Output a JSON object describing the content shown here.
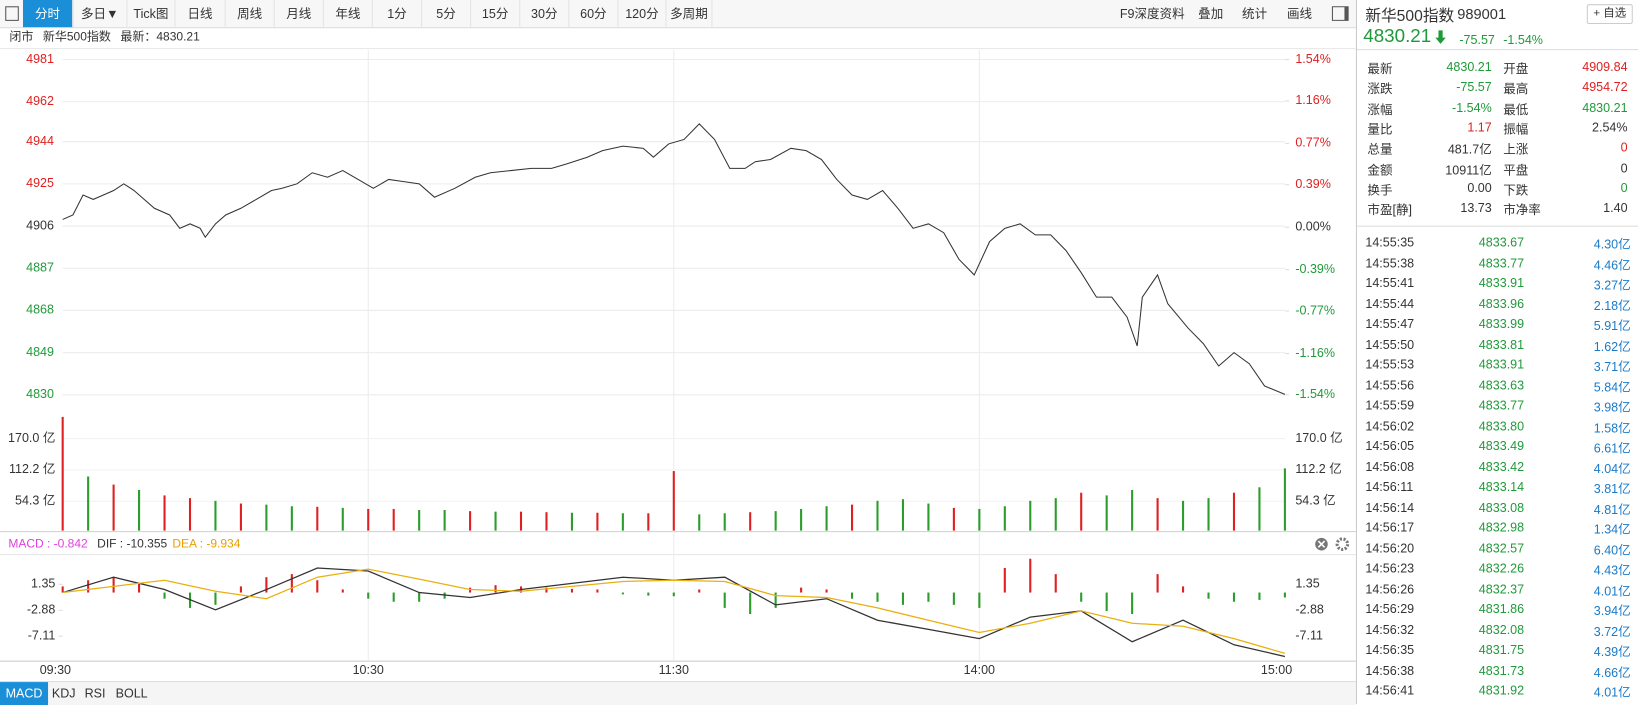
{
  "toolbar": {
    "left": [
      "分时",
      "多日▼",
      "Tick图",
      "日线",
      "周线",
      "月线",
      "年线",
      "1分",
      "5分",
      "15分",
      "30分",
      "60分",
      "120分",
      "多周期"
    ],
    "active": 0,
    "right": [
      "F9深度资料",
      "叠加",
      "统计",
      "画线"
    ]
  },
  "subheader": {
    "status": "闭市",
    "name": "新华500指数",
    "latest": "最新：4830.21"
  },
  "chart_data": [
    {
      "type": "line",
      "x": [
        0,
        2,
        4,
        6,
        8,
        10,
        12,
        14,
        16,
        18,
        21,
        23,
        25,
        27,
        28,
        30,
        32,
        35,
        38,
        41,
        43,
        46,
        49,
        52,
        55,
        58,
        61,
        64,
        67,
        70,
        73,
        77,
        81,
        84,
        88,
        92,
        96,
        99,
        103,
        106,
        110,
        114,
        116,
        119,
        122,
        125,
        128,
        131,
        134,
        136,
        139,
        143,
        146,
        149,
        152,
        155,
        158,
        161,
        164,
        167,
        170,
        173,
        176,
        179,
        182,
        185,
        188,
        191,
        194,
        197,
        200,
        203,
        206,
        209,
        211,
        212,
        215,
        217,
        221,
        224,
        227,
        230,
        233,
        236,
        240
      ],
      "xlim": [
        0,
        240
      ],
      "xticks": [
        {
          "value": 0,
          "label": "09:30"
        },
        {
          "value": 60,
          "label": "10:30"
        },
        {
          "value": 120,
          "label": "11:30"
        },
        {
          "value": 180,
          "label": "14:00"
        },
        {
          "value": 240,
          "label": "15:00"
        }
      ],
      "series": [
        {
          "color": "#333333",
          "values": [
            4909,
            4911,
            4920,
            4918,
            4920,
            4922,
            4925,
            4922,
            4918,
            4914,
            4911,
            4905,
            4907,
            4905,
            4901,
            4907,
            4911,
            4914,
            4918,
            4922,
            4923,
            4925,
            4930,
            4928,
            4931,
            4927,
            4923,
            4927,
            4926,
            4925,
            4919,
            4923,
            4928,
            4930,
            4931,
            4932,
            4932,
            4934,
            4937,
            4940,
            4942,
            4941,
            4937,
            4943,
            4945,
            4952,
            4945,
            4932,
            4932,
            4935,
            4936,
            4941,
            4940,
            4936,
            4927,
            4920,
            4918,
            4922,
            4914,
            4905,
            4907,
            4903,
            4891,
            4884,
            4899,
            4905,
            4907,
            4902,
            4902,
            4895,
            4885,
            4874,
            4874,
            4865,
            4852,
            4874,
            4884,
            4871,
            4860,
            4853,
            4843,
            4849,
            4844,
            4834,
            4830.21
          ]
        }
      ],
      "ylim": [
        4830,
        4981
      ],
      "yticks": [
        4981,
        4962,
        4944,
        4925,
        4906,
        4887,
        4868,
        4849,
        4830
      ],
      "y2lim": [
        -1.54,
        1.54
      ],
      "y2ticks": [
        {
          "value": 1.54,
          "label": "1.54%"
        },
        {
          "value": 1.16,
          "label": "1.16%"
        },
        {
          "value": 0.77,
          "label": "0.77%"
        },
        {
          "value": 0.39,
          "label": "0.39%"
        },
        {
          "value": 0,
          "label": "0.00%"
        },
        {
          "value": -0.39,
          "label": "-0.39%"
        },
        {
          "value": -0.77,
          "label": "-0.77%"
        },
        {
          "value": -1.16,
          "label": "-1.16%"
        },
        {
          "value": -1.54,
          "label": "-1.54%"
        }
      ],
      "grid": true
    },
    {
      "type": "bar",
      "x": [
        0,
        5,
        10,
        15,
        20,
        25,
        30,
        35,
        40,
        45,
        50,
        55,
        60,
        65,
        70,
        75,
        80,
        85,
        90,
        95,
        100,
        105,
        110,
        115,
        120,
        125,
        130,
        135,
        140,
        145,
        150,
        155,
        160,
        165,
        170,
        175,
        180,
        185,
        190,
        195,
        200,
        205,
        210,
        215,
        220,
        225,
        230,
        235,
        240
      ],
      "values": [
        210,
        100,
        85,
        75,
        65,
        60,
        55,
        50,
        48,
        45,
        44,
        42,
        40,
        40,
        38,
        38,
        36,
        35,
        35,
        34,
        33,
        33,
        32,
        32,
        110,
        30,
        32,
        34,
        36,
        40,
        45,
        48,
        55,
        58,
        50,
        42,
        40,
        45,
        55,
        60,
        70,
        65,
        75,
        60,
        55,
        60,
        70,
        80,
        115
      ],
      "colors": [
        "#e02020",
        "#2a9d2a",
        "#e02020",
        "#2a9d2a",
        "#e02020",
        "#e02020",
        "#2a9d2a",
        "#e02020",
        "#2a9d2a",
        "#2a9d2a",
        "#e02020",
        "#2a9d2a",
        "#e02020",
        "#e02020",
        "#2a9d2a",
        "#2a9d2a",
        "#e02020",
        "#2a9d2a",
        "#e02020",
        "#e02020",
        "#2a9d2a",
        "#e02020",
        "#2a9d2a",
        "#e02020",
        "#e02020",
        "#2a9d2a",
        "#2a9d2a",
        "#e02020",
        "#2a9d2a",
        "#2a9d2a",
        "#2a9d2a",
        "#e02020",
        "#2a9d2a",
        "#2a9d2a",
        "#2a9d2a",
        "#e02020",
        "#2a9d2a",
        "#2a9d2a",
        "#2a9d2a",
        "#2a9d2a",
        "#e02020",
        "#2a9d2a",
        "#2a9d2a",
        "#e02020",
        "#2a9d2a",
        "#2a9d2a",
        "#e02020",
        "#2a9d2a",
        "#2a9d2a"
      ],
      "ylim": [
        0,
        218
      ],
      "yticks": [
        {
          "value": 170,
          "label": "170.0 亿"
        },
        {
          "value": 112.2,
          "label": "112.2 亿"
        },
        {
          "value": 54.3,
          "label": "54.3 亿"
        }
      ]
    },
    {
      "type": "macd",
      "labels": [
        {
          "text": "MACD : -0.842",
          "color": "#e040e0"
        },
        {
          "text": "DIF : -10.355",
          "color": "#333333"
        },
        {
          "text": "DEA : -9.934",
          "color": "#e8a000"
        }
      ],
      "histogram": {
        "x": [
          0,
          5,
          10,
          15,
          20,
          25,
          30,
          35,
          40,
          45,
          50,
          55,
          60,
          65,
          70,
          75,
          80,
          85,
          90,
          95,
          100,
          105,
          110,
          115,
          120,
          125,
          130,
          135,
          140,
          145,
          150,
          155,
          160,
          165,
          170,
          175,
          180,
          185,
          190,
          195,
          200,
          205,
          210,
          215,
          220,
          225,
          230,
          235,
          240
        ],
        "values": [
          1.0,
          2.0,
          2.5,
          1.5,
          -1.0,
          -2.5,
          -2.0,
          1.0,
          2.5,
          3.0,
          2.0,
          0.5,
          -1.0,
          -1.5,
          -1.5,
          -1.0,
          0.8,
          1.2,
          1.0,
          0.8,
          0.6,
          0.5,
          -0.3,
          -0.5,
          -0.6,
          0.5,
          -2.5,
          -3.5,
          -2.5,
          0.8,
          0.5,
          -1.0,
          -1.5,
          -2.0,
          -1.5,
          -2.0,
          -2.5,
          4.0,
          5.5,
          3.0,
          -1.5,
          -3.0,
          -3.5,
          3.0,
          1.0,
          -1.0,
          -1.5,
          -1.2,
          -0.8
        ],
        "up_color": "#e02020",
        "down_color": "#2a9d2a"
      },
      "series": [
        {
          "color": "#333333",
          "x": [
            0,
            10,
            20,
            30,
            40,
            50,
            60,
            70,
            80,
            90,
            100,
            110,
            120,
            130,
            140,
            150,
            160,
            170,
            180,
            190,
            200,
            210,
            220,
            230,
            240
          ],
          "values": [
            0,
            2.5,
            0.5,
            -2.8,
            0.5,
            4.0,
            3.5,
            0,
            -0.8,
            0.5,
            1.5,
            2.5,
            2.0,
            2.5,
            -2.0,
            -1.0,
            -4.5,
            -6.0,
            -7.5,
            -4.0,
            -3.0,
            -8.0,
            -4.5,
            -8.5,
            -10.4
          ]
        },
        {
          "color": "#e8b010",
          "x": [
            0,
            10,
            20,
            30,
            40,
            50,
            60,
            70,
            80,
            90,
            100,
            110,
            120,
            130,
            140,
            150,
            160,
            170,
            180,
            190,
            200,
            210,
            220,
            230,
            240
          ],
          "values": [
            0,
            1.0,
            2.0,
            0.2,
            -1.0,
            2.5,
            3.8,
            2.2,
            0.5,
            0.2,
            1.0,
            1.8,
            2.0,
            1.8,
            -0.5,
            -0.8,
            -2.5,
            -4.5,
            -6.5,
            -5.0,
            -3.0,
            -5.0,
            -5.5,
            -7.5,
            -9.9
          ]
        }
      ],
      "ylim": [
        -11,
        6
      ],
      "yticks": [
        1.35,
        -2.88,
        -7.11
      ]
    }
  ],
  "tabs": {
    "items": [
      "MACD",
      "KDJ",
      "RSI",
      "BOLL"
    ],
    "active": 0
  },
  "quote": {
    "name": "新华500指数",
    "code": "989001",
    "add": "+ 自选",
    "price": "4830.21",
    "change": "-75.57",
    "pct": "-1.54%",
    "color": "#1f9a3a",
    "stats": [
      {
        "label": "最新",
        "value": "4830.21",
        "color": "#1f9a3a"
      },
      {
        "label": "开盘",
        "value": "4909.84",
        "color": "#e02020"
      },
      {
        "label": "涨跌",
        "value": "-75.57",
        "color": "#1f9a3a"
      },
      {
        "label": "最高",
        "value": "4954.72",
        "color": "#e02020"
      },
      {
        "label": "涨幅",
        "value": "-1.54%",
        "color": "#1f9a3a"
      },
      {
        "label": "最低",
        "value": "4830.21",
        "color": "#1f9a3a"
      },
      {
        "label": "量比",
        "value": "1.17",
        "color": "#e02020"
      },
      {
        "label": "振幅",
        "value": "2.54%",
        "color": "#333333"
      },
      {
        "label": "总量",
        "value": "481.7亿",
        "color": "#333333"
      },
      {
        "label": "上涨",
        "value": "0",
        "color": "#e02020"
      },
      {
        "label": "金额",
        "value": "10911亿",
        "color": "#333333"
      },
      {
        "label": "平盘",
        "value": "0",
        "color": "#333333"
      },
      {
        "label": "换手",
        "value": "0.00",
        "color": "#333333"
      },
      {
        "label": "下跌",
        "value": "0",
        "color": "#1f9a3a"
      },
      {
        "label": "市盈[静]",
        "value": "13.73",
        "color": "#333333"
      },
      {
        "label": "市净率",
        "value": "1.40",
        "color": "#333333"
      }
    ]
  },
  "ticks": {
    "price_color": "#1f9a3a",
    "volume_color": "#1a7ac8",
    "rows": [
      [
        "14:55:35",
        "4833.67",
        "4.30亿"
      ],
      [
        "14:55:38",
        "4833.77",
        "4.46亿"
      ],
      [
        "14:55:41",
        "4833.91",
        "3.27亿"
      ],
      [
        "14:55:44",
        "4833.96",
        "2.18亿"
      ],
      [
        "14:55:47",
        "4833.99",
        "5.91亿"
      ],
      [
        "14:55:50",
        "4833.81",
        "1.62亿"
      ],
      [
        "14:55:53",
        "4833.91",
        "3.71亿"
      ],
      [
        "14:55:56",
        "4833.63",
        "5.84亿"
      ],
      [
        "14:55:59",
        "4833.77",
        "3.98亿"
      ],
      [
        "14:56:02",
        "4833.80",
        "1.58亿"
      ],
      [
        "14:56:05",
        "4833.49",
        "6.61亿"
      ],
      [
        "14:56:08",
        "4833.42",
        "4.04亿"
      ],
      [
        "14:56:11",
        "4833.14",
        "3.81亿"
      ],
      [
        "14:56:14",
        "4833.08",
        "4.81亿"
      ],
      [
        "14:56:17",
        "4832.98",
        "1.34亿"
      ],
      [
        "14:56:20",
        "4832.57",
        "6.40亿"
      ],
      [
        "14:56:23",
        "4832.26",
        "4.43亿"
      ],
      [
        "14:56:26",
        "4832.37",
        "4.01亿"
      ],
      [
        "14:56:29",
        "4831.86",
        "3.94亿"
      ],
      [
        "14:56:32",
        "4832.08",
        "3.72亿"
      ],
      [
        "14:56:35",
        "4831.75",
        "4.39亿"
      ],
      [
        "14:56:38",
        "4831.73",
        "4.66亿"
      ],
      [
        "14:56:41",
        "4831.92",
        "4.01亿"
      ]
    ]
  }
}
